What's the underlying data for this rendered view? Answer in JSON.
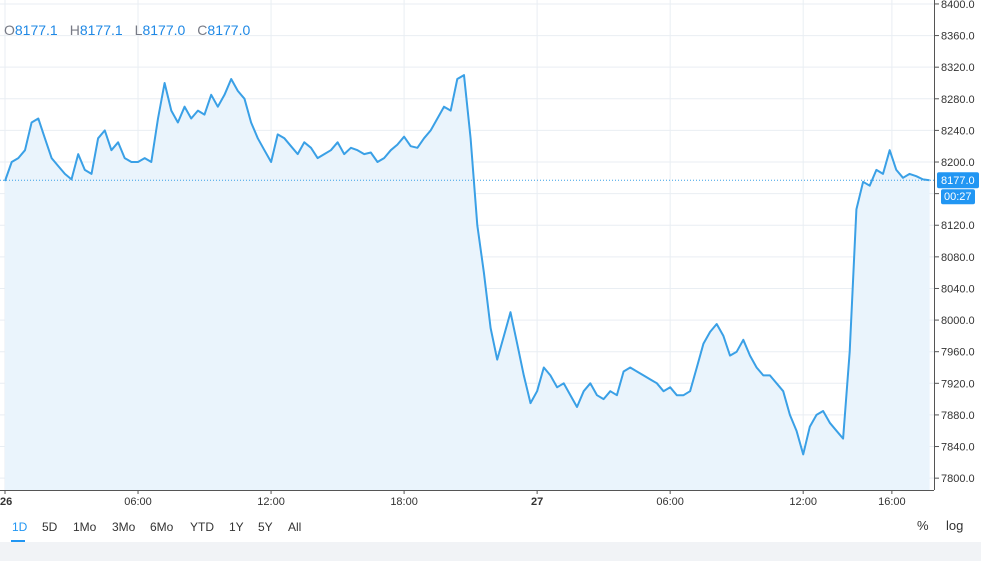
{
  "colors": {
    "line": "#3aa0e6",
    "fill": "#eaf4fc",
    "grid": "#e9eef3",
    "axis_text": "#333333",
    "badge_price": "#2196f3",
    "badge_time": "#2196f3",
    "ohlc_value": "#1e88e5",
    "ohlc_label": "#787b86"
  },
  "ohlc": {
    "open_label": "O",
    "open": "8177.1",
    "high_label": "H",
    "high": "8177.1",
    "low_label": "L",
    "low": "8177.0",
    "close_label": "C",
    "close": "8177.0"
  },
  "badges": {
    "price": "8177.0",
    "countdown": "00:27"
  },
  "timeframes": [
    "1D",
    "5D",
    "1Mo",
    "3Mo",
    "6Mo",
    "YTD",
    "1Y",
    "5Y",
    "All"
  ],
  "active_timeframe": "1D",
  "options": {
    "percent": "%",
    "log": "log"
  },
  "chart_data": {
    "type": "area",
    "y_ticks": [
      7800,
      7840,
      7880,
      7920,
      7960,
      8000,
      8040,
      8080,
      8120,
      8160,
      8200,
      8240,
      8280,
      8320,
      8360,
      8400
    ],
    "y_tick_labels": [
      "7800.0",
      "7840.0",
      "7880.0",
      "7920.0",
      "7960.0",
      "8000.0",
      "8040.0",
      "8080.0",
      "8120.0",
      "8160.0",
      "8200.0",
      "8240.0",
      "8280.0",
      "8320.0",
      "8360.0",
      "8400.0"
    ],
    "ylim": [
      7785,
      8405
    ],
    "x_ticks": [
      0,
      6,
      12,
      18,
      24,
      30,
      36,
      40
    ],
    "x_tick_labels": [
      "26",
      "06:00",
      "12:00",
      "18:00",
      "27",
      "06:00",
      "12:00",
      "16:00"
    ],
    "xlim": [
      0,
      41.9
    ],
    "last_price": 8177.0,
    "grid": true,
    "x": [
      0,
      0.3,
      0.6,
      0.9,
      1.2,
      1.5,
      1.8,
      2.1,
      2.4,
      2.7,
      3.0,
      3.3,
      3.6,
      3.9,
      4.2,
      4.5,
      4.8,
      5.1,
      5.4,
      5.7,
      6.0,
      6.3,
      6.6,
      6.9,
      7.2,
      7.5,
      7.8,
      8.1,
      8.4,
      8.7,
      9.0,
      9.3,
      9.6,
      9.9,
      10.2,
      10.5,
      10.8,
      11.1,
      11.4,
      11.7,
      12.0,
      12.3,
      12.6,
      12.9,
      13.2,
      13.5,
      13.8,
      14.1,
      14.4,
      14.7,
      15.0,
      15.3,
      15.6,
      15.9,
      16.2,
      16.5,
      16.8,
      17.1,
      17.4,
      17.7,
      18.0,
      18.3,
      18.6,
      18.9,
      19.2,
      19.5,
      19.8,
      20.1,
      20.4,
      20.7,
      21.0,
      21.3,
      21.6,
      21.9,
      22.2,
      22.5,
      22.8,
      23.1,
      23.4,
      23.7,
      24.0,
      24.3,
      24.6,
      24.9,
      25.2,
      25.5,
      25.8,
      26.1,
      26.4,
      26.7,
      27.0,
      27.3,
      27.6,
      27.9,
      28.2,
      28.5,
      28.8,
      29.1,
      29.4,
      29.7,
      30.0,
      30.3,
      30.6,
      30.9,
      31.2,
      31.5,
      31.8,
      32.1,
      32.4,
      32.7,
      33.0,
      33.3,
      33.6,
      33.9,
      34.2,
      34.5,
      34.8,
      35.1,
      35.4,
      35.7,
      36.0,
      36.3,
      36.6,
      36.9,
      37.2,
      37.5,
      37.8,
      38.1,
      38.4,
      38.7,
      39.0,
      39.3,
      39.6,
      39.9,
      40.2,
      40.5,
      40.8,
      41.1,
      41.4,
      41.7
    ],
    "y": [
      8176,
      8200,
      8205,
      8215,
      8250,
      8255,
      8230,
      8205,
      8195,
      8185,
      8178,
      8210,
      8190,
      8185,
      8230,
      8240,
      8215,
      8225,
      8205,
      8200,
      8200,
      8205,
      8200,
      8255,
      8300,
      8265,
      8250,
      8270,
      8255,
      8265,
      8260,
      8285,
      8270,
      8285,
      8305,
      8290,
      8280,
      8250,
      8230,
      8215,
      8200,
      8235,
      8230,
      8220,
      8210,
      8225,
      8218,
      8205,
      8210,
      8215,
      8225,
      8210,
      8218,
      8215,
      8210,
      8212,
      8200,
      8205,
      8215,
      8222,
      8232,
      8220,
      8218,
      8230,
      8240,
      8255,
      8270,
      8265,
      8305,
      8310,
      8230,
      8120,
      8060,
      7990,
      7950,
      7980,
      8010,
      7970,
      7930,
      7895,
      7910,
      7940,
      7930,
      7915,
      7920,
      7905,
      7890,
      7910,
      7920,
      7905,
      7900,
      7910,
      7905,
      7935,
      7940,
      7935,
      7930,
      7925,
      7920,
      7910,
      7915,
      7905,
      7905,
      7910,
      7940,
      7970,
      7985,
      7995,
      7980,
      7955,
      7960,
      7975,
      7955,
      7940,
      7930,
      7930,
      7920,
      7910,
      7880,
      7860,
      7830,
      7865,
      7880,
      7885,
      7870,
      7860,
      7850,
      7960,
      8140,
      8175,
      8170,
      8190,
      8185,
      8215,
      8190,
      8180,
      8185,
      8182,
      8178,
      8177
    ]
  }
}
